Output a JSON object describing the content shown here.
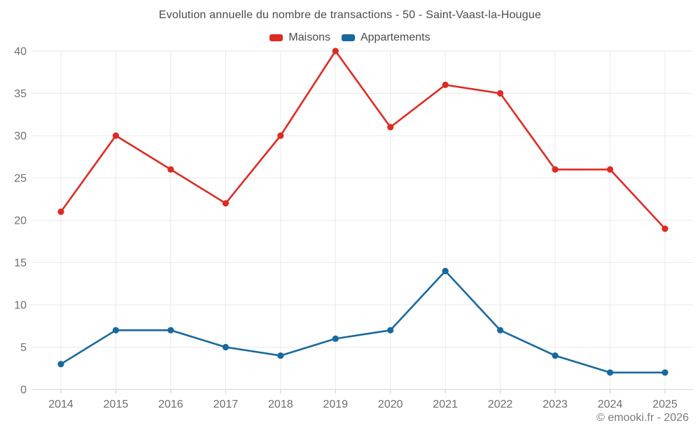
{
  "page": {
    "title": "Evolution annuelle du nombre de transactions - 50 - Saint-Vaast-la-Hougue",
    "footer": "© emooki.fr - 2026"
  },
  "legend": {
    "items": [
      {
        "label": "Maisons",
        "color": "#df2a23"
      },
      {
        "label": "Appartements",
        "color": "#1769a0"
      }
    ]
  },
  "colors": {
    "maisons": "#df2a23",
    "appartements": "#1769a0",
    "grid": "#e9e9e9",
    "axis": "#cfcfcf",
    "tick_label": "#6f6f6f",
    "title": "#4a4a4a",
    "footer": "#7b7b7b"
  },
  "chart_data": {
    "type": "line",
    "title": "Evolution annuelle du nombre de transactions - 50 - Saint-Vaast-la-Hougue",
    "categories": [
      "2014",
      "2015",
      "2016",
      "2017",
      "2018",
      "2019",
      "2020",
      "2021",
      "2022",
      "2023",
      "2024",
      "2025"
    ],
    "series": [
      {
        "name": "Maisons",
        "color": "#df2a23",
        "values": [
          21,
          30,
          26,
          22,
          30,
          40,
          31,
          36,
          35,
          26,
          26,
          19
        ]
      },
      {
        "name": "Appartements",
        "color": "#1769a0",
        "values": [
          3,
          7,
          7,
          5,
          4,
          6,
          7,
          14,
          7,
          4,
          2,
          2
        ]
      }
    ],
    "xlabel": "",
    "ylabel": "",
    "ylim": [
      0,
      40
    ],
    "yticks": [
      0,
      5,
      10,
      15,
      20,
      25,
      30,
      35,
      40
    ],
    "grid": true,
    "legend_position": "top"
  }
}
